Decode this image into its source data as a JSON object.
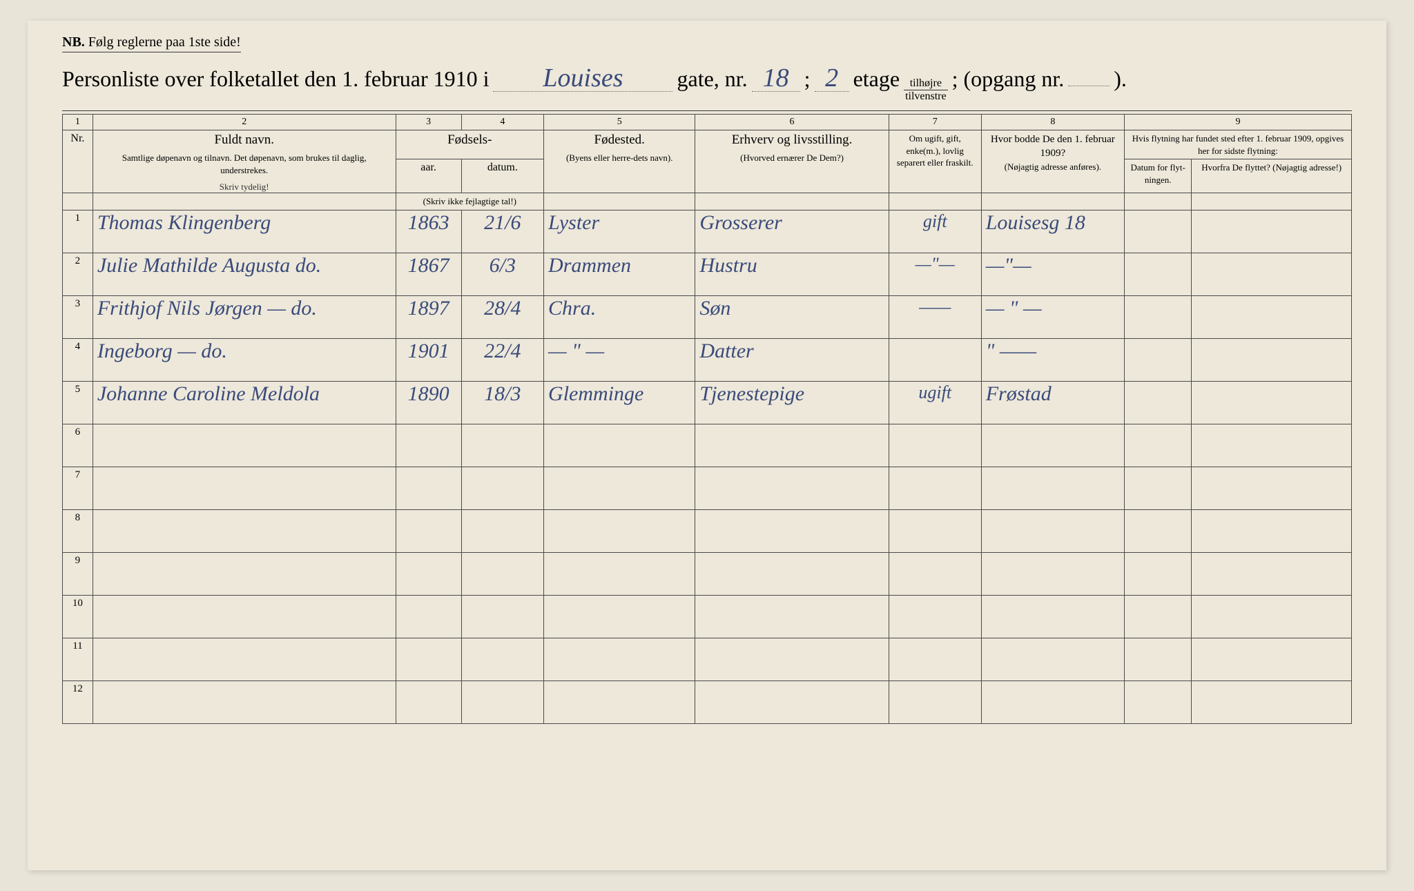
{
  "nb": {
    "label": "NB.",
    "text": "Følg reglerne paa 1ste side!"
  },
  "title": {
    "prefix": "Personliste over folketallet den 1. februar 1910 i",
    "street": "Louises",
    "gate_label": "gate, nr.",
    "gate_nr": "18",
    "sep": ";",
    "etage_nr": "2",
    "etage_label": "etage",
    "side_top": "tilhøjre",
    "side_bot": "tilvenstre",
    "opgang_label": "; (opgang nr.",
    "opgang_nr": "",
    "close": ")."
  },
  "colnums": [
    "1",
    "2",
    "3",
    "4",
    "5",
    "6",
    "7",
    "8",
    "9"
  ],
  "headers": {
    "nr": "Nr.",
    "name_main": "Fuldt navn.",
    "name_sub": "Samtlige døpenavn og tilnavn. Det døpenavn, som brukes til daglig, understrekes.",
    "fodsels": "Fødsels-",
    "aar": "aar.",
    "datum": "datum.",
    "aar_note": "(Skriv ikke fejlagtige tal!)",
    "fodested_main": "Fødested.",
    "fodested_sub": "(Byens eller herre-dets navn).",
    "erhverv_main": "Erhverv og livsstilling.",
    "erhverv_sub": "(Hvorved ernærer De Dem?)",
    "civil": "Om ugift, gift, enke(m.), lovlig separert eller fraskilt.",
    "addr1909_main": "Hvor bodde De den 1. februar 1909?",
    "addr1909_sub": "(Nøjagtig adresse anføres).",
    "flyt_main": "Hvis flytning har fundet sted efter 1. februar 1909, opgives her for sidste flytning:",
    "flyt_datum": "Datum for flyt-ningen.",
    "flyt_hvorfra": "Hvorfra De flyttet? (Nøjagtig adresse!)",
    "skriv_tydelig": "Skriv tydelig!"
  },
  "rows": [
    {
      "n": "1",
      "name": "Thomas Klingenberg",
      "aar": "1863",
      "datum": "21/6",
      "sted": "Lyster",
      "erhverv": "Grosserer",
      "civil": "gift",
      "addr": "Louisesg 18",
      "fd": "",
      "fh": ""
    },
    {
      "n": "2",
      "name": "Julie Mathilde Augusta   do.",
      "aar": "1867",
      "datum": "6/3",
      "sted": "Drammen",
      "erhverv": "Hustru",
      "civil": "—\"—",
      "addr": "—\"—",
      "fd": "",
      "fh": ""
    },
    {
      "n": "3",
      "name": "Frithjof Nils Jørgen   — do.",
      "aar": "1897",
      "datum": "28/4",
      "sted": "Chra.",
      "erhverv": "Søn",
      "civil": "——",
      "addr": "— \" —",
      "fd": "",
      "fh": ""
    },
    {
      "n": "4",
      "name": "Ingeborg            —  do.",
      "aar": "1901",
      "datum": "22/4",
      "sted": "— \" —",
      "erhverv": "Datter",
      "civil": "",
      "addr": "\" ——",
      "fd": "",
      "fh": ""
    },
    {
      "n": "5",
      "name": "Johanne Caroline Meldola",
      "aar": "1890",
      "datum": "18/3",
      "sted": "Glemminge",
      "erhverv": "Tjenestepige",
      "civil": "ugift",
      "addr": "Frøstad",
      "fd": "",
      "fh": ""
    },
    {
      "n": "6",
      "name": "",
      "aar": "",
      "datum": "",
      "sted": "",
      "erhverv": "",
      "civil": "",
      "addr": "",
      "fd": "",
      "fh": ""
    },
    {
      "n": "7",
      "name": "",
      "aar": "",
      "datum": "",
      "sted": "",
      "erhverv": "",
      "civil": "",
      "addr": "",
      "fd": "",
      "fh": ""
    },
    {
      "n": "8",
      "name": "",
      "aar": "",
      "datum": "",
      "sted": "",
      "erhverv": "",
      "civil": "",
      "addr": "",
      "fd": "",
      "fh": ""
    },
    {
      "n": "9",
      "name": "",
      "aar": "",
      "datum": "",
      "sted": "",
      "erhverv": "",
      "civil": "",
      "addr": "",
      "fd": "",
      "fh": ""
    },
    {
      "n": "10",
      "name": "",
      "aar": "",
      "datum": "",
      "sted": "",
      "erhverv": "",
      "civil": "",
      "addr": "",
      "fd": "",
      "fh": ""
    },
    {
      "n": "11",
      "name": "",
      "aar": "",
      "datum": "",
      "sted": "",
      "erhverv": "",
      "civil": "",
      "addr": "",
      "fd": "",
      "fh": ""
    },
    {
      "n": "12",
      "name": "",
      "aar": "",
      "datum": "",
      "sted": "",
      "erhverv": "",
      "civil": "",
      "addr": "",
      "fd": "",
      "fh": ""
    }
  ],
  "ticks": [
    true,
    true,
    true,
    true,
    true,
    false,
    false,
    false,
    false,
    false,
    false,
    false
  ],
  "colors": {
    "paper": "#ede8da",
    "ink_print": "#2a2a2a",
    "ink_hand": "#3a4a7a",
    "border": "#4a4a4a"
  }
}
